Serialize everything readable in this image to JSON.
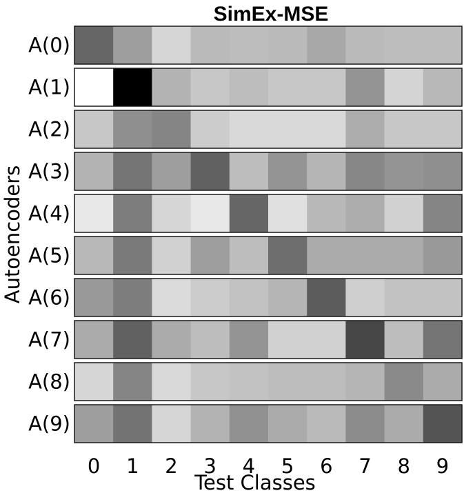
{
  "chart_data": {
    "type": "heatmap",
    "title": "SimEx-MSE",
    "xlabel": "Test Classes",
    "ylabel": "Autoencoders",
    "x_categories": [
      "0",
      "1",
      "2",
      "3",
      "4",
      "5",
      "6",
      "7",
      "8",
      "9"
    ],
    "y_categories": [
      "A(0)",
      "A(1)",
      "A(2)",
      "A(3)",
      "A(4)",
      "A(5)",
      "A(6)",
      "A(7)",
      "A(8)",
      "A(9)"
    ],
    "colormap": "gray",
    "scale": "row-normalized intensity (0 = black, 1 = white)",
    "grid": false,
    "values": [
      [
        0.4,
        0.62,
        0.84,
        0.73,
        0.74,
        0.73,
        0.66,
        0.73,
        0.74,
        0.74
      ],
      [
        1.0,
        0.0,
        0.7,
        0.78,
        0.74,
        0.78,
        0.78,
        0.58,
        0.83,
        0.72
      ],
      [
        0.78,
        0.56,
        0.52,
        0.8,
        0.85,
        0.85,
        0.85,
        0.68,
        0.78,
        0.78
      ],
      [
        0.7,
        0.46,
        0.62,
        0.38,
        0.74,
        0.58,
        0.71,
        0.53,
        0.58,
        0.56
      ],
      [
        0.91,
        0.49,
        0.84,
        0.91,
        0.4,
        0.88,
        0.72,
        0.68,
        0.82,
        0.52
      ],
      [
        0.72,
        0.48,
        0.82,
        0.62,
        0.74,
        0.43,
        0.67,
        0.67,
        0.67,
        0.6
      ],
      [
        0.6,
        0.49,
        0.86,
        0.8,
        0.76,
        0.71,
        0.36,
        0.81,
        0.76,
        0.76
      ],
      [
        0.67,
        0.38,
        0.67,
        0.74,
        0.58,
        0.82,
        0.82,
        0.28,
        0.74,
        0.46
      ],
      [
        0.84,
        0.52,
        0.85,
        0.78,
        0.76,
        0.74,
        0.74,
        0.71,
        0.54,
        0.67
      ],
      [
        0.62,
        0.45,
        0.84,
        0.7,
        0.57,
        0.67,
        0.73,
        0.55,
        0.67,
        0.33
      ]
    ]
  }
}
